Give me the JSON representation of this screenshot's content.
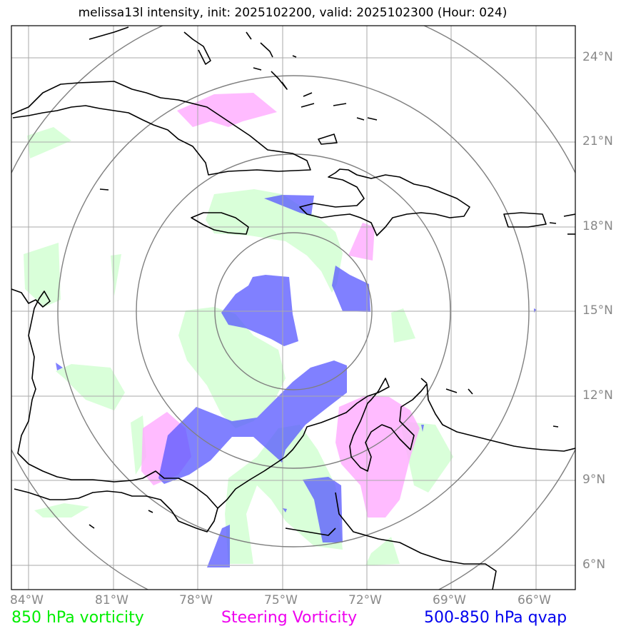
{
  "title": "melissa13l intensity, init: 2025102200, valid: 2025102300 (Hour: 024)",
  "lat_labels": [
    "24°N",
    "21°N",
    "18°N",
    "15°N",
    "12°N",
    "9°N",
    "6°N"
  ],
  "lon_labels": [
    "84°W",
    "81°W",
    "78°W",
    "75°W",
    "72°W",
    "69°W",
    "66°W"
  ],
  "legend": {
    "vort850": {
      "label": "850 hPa vorticity",
      "color": "#00ee00"
    },
    "steering": {
      "label": "Steering Vorticity",
      "color": "#ee00ee"
    },
    "qvap": {
      "label": "500-850 hPa qvap",
      "color": "#0000ee"
    }
  },
  "colors": {
    "vort850_fill": "#ccffcc",
    "steering_fill": "#ffaaff",
    "qvap_fill": "#5555ff",
    "grid": "#aaaaaa",
    "range_rings": "#808080",
    "coast": "#000000"
  }
}
